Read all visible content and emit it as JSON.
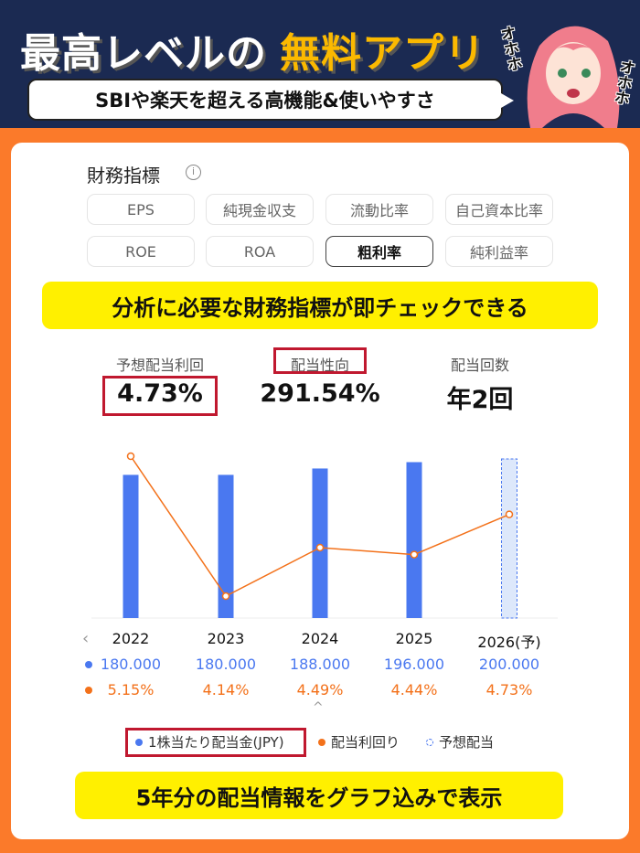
{
  "header": {
    "title_main": "最高レベルの",
    "title_highlight": "無料アプリ",
    "subtitle": "SBIや楽天を超える高機能&使いやすさ",
    "character_text": "オホホ"
  },
  "financial": {
    "title": "財務指標",
    "info_icon": "info-icon",
    "chips": [
      {
        "label": "EPS",
        "active": false
      },
      {
        "label": "純現金収支",
        "active": false
      },
      {
        "label": "流動比率",
        "active": false
      },
      {
        "label": "自己資本比率",
        "active": false
      },
      {
        "label": "ROE",
        "active": false
      },
      {
        "label": "ROA",
        "active": false
      },
      {
        "label": "粗利率",
        "active": true
      },
      {
        "label": "純利益率",
        "active": false
      }
    ]
  },
  "banner_top": "分析に必要な財務指標が即チェックできる",
  "metrics": [
    {
      "label": "予想配当利回",
      "value": "4.73%"
    },
    {
      "label": "配当性向",
      "value": "291.54%"
    },
    {
      "label": "配当回数",
      "value": "年2回"
    }
  ],
  "chart_data": {
    "type": "bar+line",
    "categories": [
      "2022",
      "2023",
      "2024",
      "2025",
      "2026(予)"
    ],
    "series": [
      {
        "name": "1株当たり配当金(JPY)",
        "type": "bar",
        "values": [
          180,
          180,
          188,
          196,
          200
        ],
        "labels": [
          "180.000",
          "180.000",
          "188.000",
          "196.000",
          "200.000"
        ],
        "color": "#4a78f0"
      },
      {
        "name": "配当利回り",
        "type": "line",
        "values": [
          5.15,
          4.14,
          4.49,
          4.44,
          4.73
        ],
        "labels": [
          "5.15%",
          "4.14%",
          "4.49%",
          "4.44%",
          "4.73%"
        ],
        "color": "#f3711a"
      }
    ],
    "forecast_legend": "予想配当",
    "forecast_category": "2026(予)"
  },
  "nav": {
    "prev_icon": "chevron-left-icon",
    "collapse_icon": "chevron-up-icon"
  },
  "banner_bottom": "5年分の配当情報をグラフ込みで表示"
}
